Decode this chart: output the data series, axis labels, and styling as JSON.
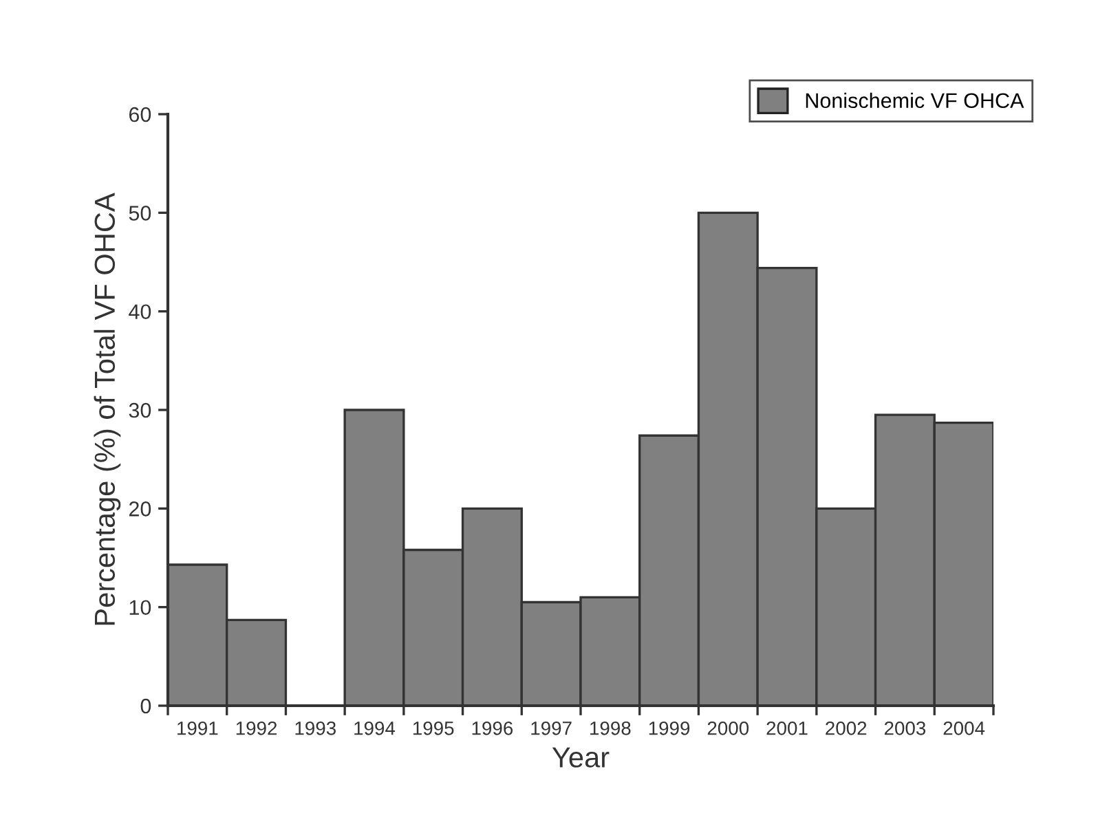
{
  "chart_data": {
    "type": "bar",
    "xlabel": "Year",
    "ylabel": "Percentage (%) of Total VF OHCA",
    "categories": [
      "1991",
      "1992",
      "1993",
      "1994",
      "1995",
      "1996",
      "1997",
      "1998",
      "1999",
      "2000",
      "2001",
      "2002",
      "2003",
      "2004"
    ],
    "series": [
      {
        "name": "Nonischemic VF OHCA",
        "color": "#808080",
        "values": [
          14.3,
          8.7,
          0,
          30.0,
          15.8,
          20.0,
          10.5,
          11.0,
          27.4,
          50.0,
          44.4,
          20.0,
          29.5,
          28.7
        ]
      }
    ],
    "ylim": [
      0,
      60
    ],
    "yticks": [
      0,
      10,
      20,
      30,
      40,
      50,
      60
    ],
    "grid": false,
    "legend": "top right"
  }
}
